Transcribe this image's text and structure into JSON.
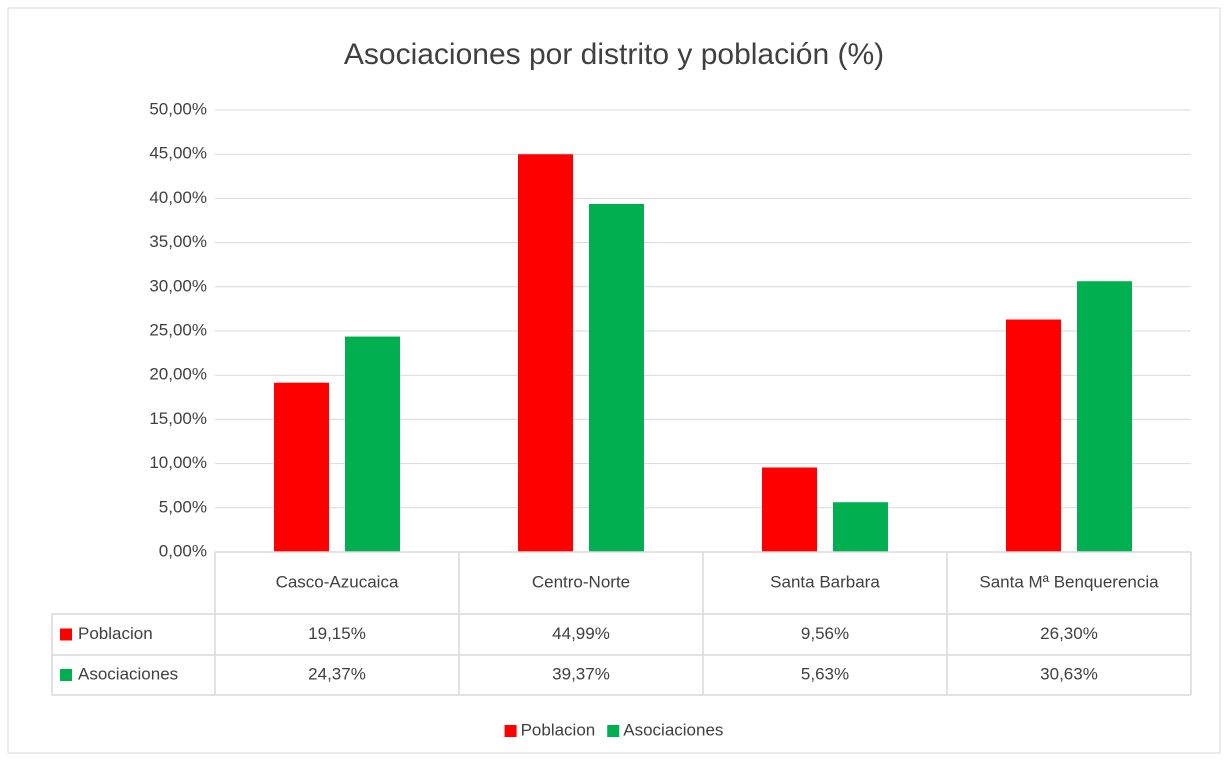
{
  "chart_data": {
    "type": "bar",
    "title": "Asociaciones por distrito y población (%)",
    "categories": [
      "Casco-Azucaica",
      "Centro-Norte",
      "Santa Barbara",
      "Santa Mª Benquerencia"
    ],
    "series": [
      {
        "name": "Poblacion",
        "color": "#ff0000",
        "values": [
          19.15,
          44.99,
          9.56,
          26.3
        ],
        "value_labels": [
          "19,15%",
          "44,99%",
          "9,56%",
          "26,30%"
        ]
      },
      {
        "name": "Asociaciones",
        "color": "#00b050",
        "values": [
          24.37,
          39.37,
          5.63,
          30.63
        ],
        "value_labels": [
          "24,37%",
          "39,37%",
          "5,63%",
          "30,63%"
        ]
      }
    ],
    "ylim": [
      0,
      50
    ],
    "yticks": [
      {
        "value": 0,
        "label": "0,00%"
      },
      {
        "value": 5,
        "label": "5,00%"
      },
      {
        "value": 10,
        "label": "10,00%"
      },
      {
        "value": 15,
        "label": "15,00%"
      },
      {
        "value": 20,
        "label": "20,00%"
      },
      {
        "value": 25,
        "label": "25,00%"
      },
      {
        "value": 30,
        "label": "30,00%"
      },
      {
        "value": 35,
        "label": "35,00%"
      },
      {
        "value": 40,
        "label": "40,00%"
      },
      {
        "value": 45,
        "label": "45,00%"
      },
      {
        "value": 50,
        "label": "50,00%"
      }
    ],
    "grid": true,
    "legend": "bottom",
    "data_table": true
  }
}
